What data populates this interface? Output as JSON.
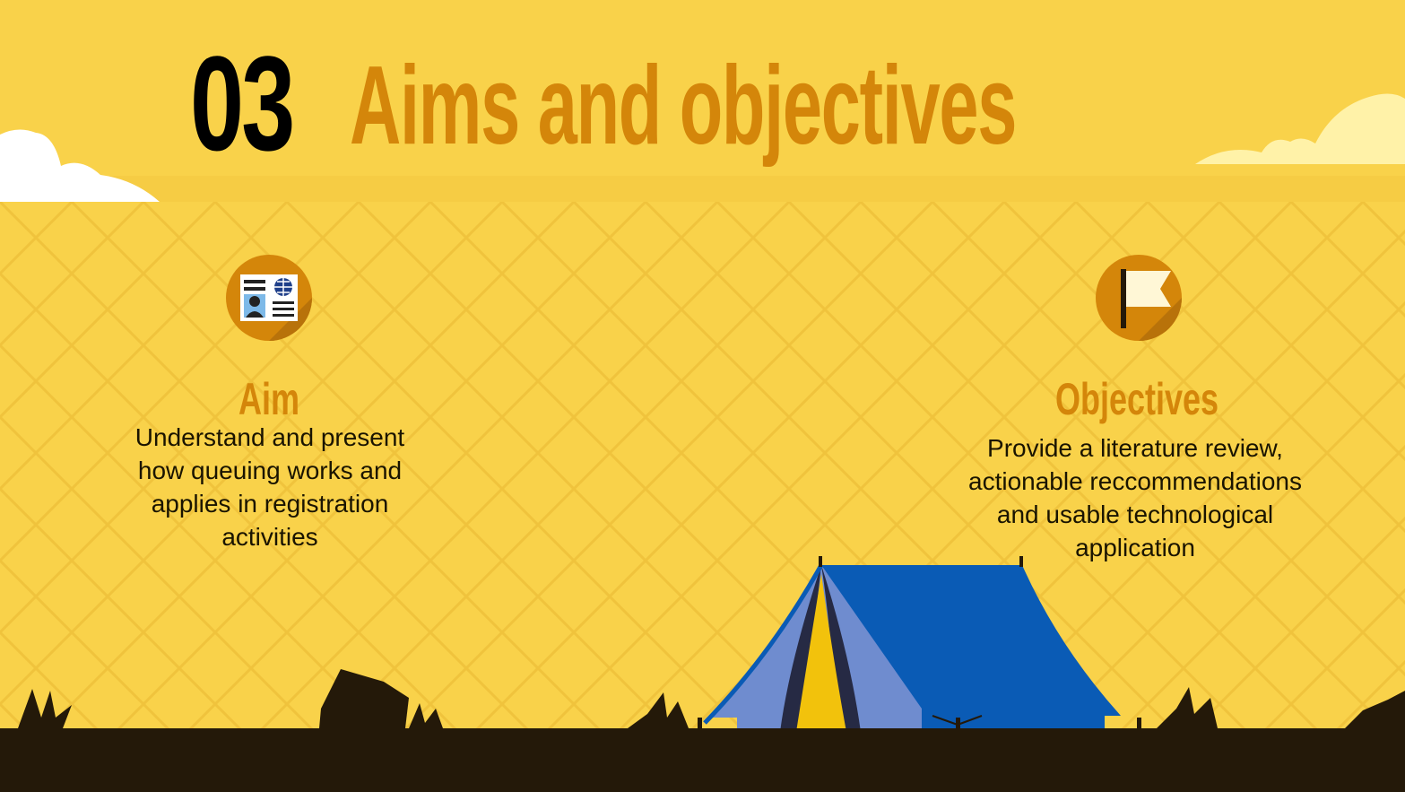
{
  "slide": {
    "number": "03",
    "title": "Aims and objectives"
  },
  "aim": {
    "heading": "Aim",
    "text": "Understand and present how queuing works and applies in registration activities",
    "icon": "id-card-icon"
  },
  "objectives": {
    "heading": "Objectives",
    "text": "Provide a literature review, actionable reccommendations and usable technological application",
    "icon": "flag-icon"
  },
  "colors": {
    "background": "#f9d24a",
    "accent": "#d4860a",
    "ground": "#241909",
    "tent_blue": "#0a5bb5"
  }
}
